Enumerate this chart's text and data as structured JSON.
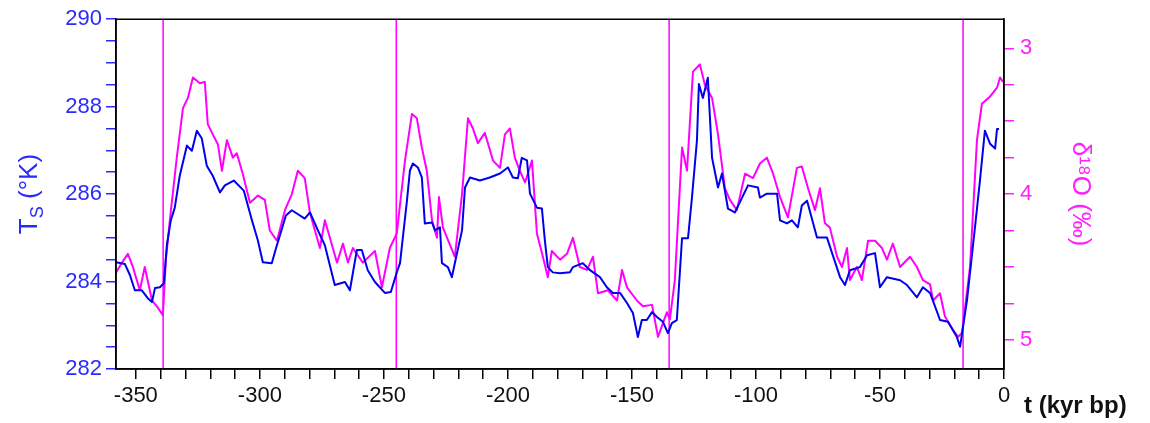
{
  "chart_data": {
    "type": "line",
    "xlabel": "t (kyr bp)",
    "ylabel": "T$_{S}$ (°K)",
    "y2label": "δ¹⁸O (‰)",
    "xlim": [
      -358,
      0
    ],
    "xticks": [
      -350,
      {
        "value": -340,
        "label": null
      },
      {
        "value": -330,
        "label": null
      },
      {
        "value": -320,
        "label": null
      },
      {
        "value": -310,
        "label": null
      },
      -300,
      {
        "value": -290,
        "label": null
      },
      {
        "value": -280,
        "label": null
      },
      {
        "value": -270,
        "label": null
      },
      {
        "value": -260,
        "label": null
      },
      -250,
      {
        "value": -240,
        "label": null
      },
      {
        "value": -230,
        "label": null
      },
      {
        "value": -220,
        "label": null
      },
      {
        "value": -210,
        "label": null
      },
      -200,
      {
        "value": -190,
        "label": null
      },
      {
        "value": -180,
        "label": null
      },
      {
        "value": -170,
        "label": null
      },
      {
        "value": -160,
        "label": null
      },
      -150,
      {
        "value": -140,
        "label": null
      },
      {
        "value": -130,
        "label": null
      },
      {
        "value": -120,
        "label": null
      },
      {
        "value": -110,
        "label": null
      },
      -100,
      {
        "value": -90,
        "label": null
      },
      {
        "value": -80,
        "label": null
      },
      {
        "value": -70,
        "label": null
      },
      {
        "value": -60,
        "label": null
      },
      -50,
      {
        "value": -40,
        "label": null
      },
      {
        "value": -30,
        "label": null
      },
      {
        "value": -20,
        "label": null
      },
      {
        "value": -10,
        "label": null
      },
      0
    ],
    "ylim": [
      282,
      290
    ],
    "yticks": [
      282,
      {
        "value": 282.5,
        "label": null
      },
      {
        "value": 283,
        "label": null
      },
      {
        "value": 283.5,
        "label": null
      },
      284,
      {
        "value": 284.5,
        "label": null
      },
      {
        "value": 285,
        "label": null
      },
      {
        "value": 285.5,
        "label": null
      },
      286,
      {
        "value": 286.5,
        "label": null
      },
      {
        "value": 287,
        "label": null
      },
      {
        "value": 287.5,
        "label": null
      },
      288,
      {
        "value": 288.5,
        "label": null
      },
      {
        "value": 289,
        "label": null
      },
      {
        "value": 289.5,
        "label": null
      },
      290
    ],
    "y2lim": [
      5.2,
      2.8
    ],
    "y2ticks": [
      3,
      {
        "value": 3.25,
        "label": null
      },
      {
        "value": 3.5,
        "label": null
      },
      {
        "value": 3.75,
        "label": null
      },
      4,
      {
        "value": 4.25,
        "label": null
      },
      {
        "value": 4.5,
        "label": null
      },
      {
        "value": 4.75,
        "label": null
      },
      5
    ],
    "grid": false,
    "legend": false,
    "marker": "none",
    "line_style": "solid",
    "ref_lines": [
      {
        "axis": "x",
        "value": -339,
        "color": "#ff00ff"
      },
      {
        "axis": "x",
        "value": -245,
        "color": "#ff00ff"
      },
      {
        "axis": "x",
        "value": -135,
        "color": "#ff00ff"
      },
      {
        "axis": "x",
        "value": -16.5,
        "color": "#ff00ff"
      }
    ],
    "series": [
      {
        "color": "#0000ee",
        "x": [
          -358,
          -354.4,
          -352.4,
          -350.4,
          -347.6,
          -345.2,
          -343.5,
          -342.3,
          -340.3,
          -338.7,
          -337.5,
          -335.9,
          -334.3,
          -332.3,
          -329.4,
          -327.4,
          -325.4,
          -323.4,
          -321.4,
          -319,
          -316.1,
          -314.1,
          -310.5,
          -306.5,
          -303.2,
          -300.8,
          -298.8,
          -295.2,
          -293.5,
          -291.9,
          -289.5,
          -287.1,
          -281.9,
          -279.8,
          -276.6,
          -273.8,
          -269.8,
          -265.7,
          -263.7,
          -260.9,
          -258.9,
          -256.5,
          -253.6,
          -249.6,
          -247.2,
          -244.8,
          -243.5,
          -240.7,
          -239.5,
          -238.3,
          -236.3,
          -234.7,
          -233.5,
          -230.6,
          -229.4,
          -227.4,
          -226.6,
          -224.2,
          -222.6,
          -221.4,
          -218.5,
          -217.3,
          -215.3,
          -211.3,
          -207.3,
          -203.2,
          -200,
          -198,
          -196,
          -194.4,
          -192.3,
          -191.1,
          -188.3,
          -186.3,
          -185.1,
          -183.9,
          -181.9,
          -179,
          -175,
          -173.8,
          -169.8,
          -166.9,
          -162.9,
          -160.1,
          -157.7,
          -154.8,
          -152,
          -149.6,
          -147.6,
          -146,
          -144,
          -141.9,
          -139.9,
          -137.5,
          -135.5,
          -133.9,
          -131.9,
          -129.8,
          -127.4,
          -125.8,
          -123.8,
          -123,
          -121.4,
          -119.4,
          -117.7,
          -115.3,
          -113.7,
          -111.3,
          -108.5,
          -105.6,
          -103.2,
          -99.2,
          -98.4,
          -95.6,
          -91.5,
          -90.3,
          -87.5,
          -85.5,
          -83.1,
          -81.5,
          -79.4,
          -75.4,
          -71.4,
          -66.1,
          -64.1,
          -62.1,
          -58.1,
          -55.2,
          -52,
          -50,
          -47.2,
          -41.9,
          -39.1,
          -35.1,
          -32.7,
          -29.8,
          -25.8,
          -22.6,
          -19,
          -17.7,
          -14.9,
          -11.7,
          -9.7,
          -7.7,
          -5.6,
          -3.6,
          -2.8,
          -2
        ],
        "values": [
          284.44,
          284.4,
          284.15,
          283.8,
          283.8,
          283.62,
          283.53,
          283.85,
          283.87,
          283.96,
          284.83,
          285.4,
          285.69,
          286.42,
          287.11,
          286.99,
          287.45,
          287.27,
          286.65,
          286.42,
          286.04,
          286.2,
          286.31,
          286.08,
          285.4,
          284.94,
          284.44,
          284.42,
          284.76,
          285.06,
          285.51,
          285.63,
          285.44,
          285.58,
          285.17,
          284.83,
          283.92,
          283.99,
          283.8,
          284.72,
          284.72,
          284.26,
          283.99,
          283.74,
          283.76,
          284.21,
          284.42,
          285.85,
          286.54,
          286.7,
          286.61,
          286.38,
          285.33,
          285.35,
          285.17,
          285.24,
          284.42,
          284.33,
          284.1,
          284.42,
          285.17,
          286.15,
          286.38,
          286.31,
          286.38,
          286.47,
          286.61,
          286.38,
          286.36,
          286.83,
          286.77,
          286.01,
          285.69,
          285.67,
          284.94,
          284.33,
          284.21,
          284.19,
          284.21,
          284.33,
          284.42,
          284.26,
          284.1,
          283.87,
          283.74,
          283.74,
          283.51,
          283.28,
          282.73,
          283.12,
          283.12,
          283.3,
          283.19,
          283.08,
          282.82,
          283.05,
          283.12,
          284.99,
          284.99,
          285.92,
          287.22,
          288.52,
          288.2,
          288.66,
          286.83,
          286.15,
          286.47,
          285.67,
          285.58,
          285.92,
          286.2,
          286.15,
          285.92,
          286.01,
          286.01,
          285.4,
          285.33,
          285.4,
          285.24,
          285.74,
          285.85,
          285.01,
          285.01,
          284.1,
          283.92,
          284.26,
          284.33,
          284.6,
          284.65,
          283.87,
          284.1,
          284.03,
          283.92,
          283.64,
          283.87,
          283.74,
          283.12,
          283.08,
          282.73,
          282.51,
          283.58,
          285.24,
          286.31,
          287.45,
          287.15,
          287.04,
          287.49,
          287.49
        ]
      },
      {
        "color": "#ff00ff",
        "axis": "y2",
        "x": [
          -358,
          -355.6,
          -353.2,
          -351.2,
          -348.4,
          -346.4,
          -343.5,
          -341.5,
          -339.1,
          -337.9,
          -336.3,
          -333.5,
          -331,
          -329,
          -327,
          -324.2,
          -322.2,
          -321,
          -319,
          -316.9,
          -315.3,
          -313.3,
          -310.9,
          -309.3,
          -306.9,
          -304,
          -300.8,
          -298,
          -296,
          -293.1,
          -289.9,
          -287.1,
          -284.7,
          -281.9,
          -279.8,
          -275.8,
          -273.8,
          -268.9,
          -266.5,
          -264.5,
          -262.5,
          -258.5,
          -253.6,
          -250.8,
          -247.6,
          -244.8,
          -241.5,
          -238.7,
          -236.7,
          -234.7,
          -232.7,
          -230.6,
          -228.6,
          -227.8,
          -226.2,
          -221.4,
          -218.5,
          -216.1,
          -214.1,
          -212.1,
          -209.3,
          -206,
          -203.2,
          -201.2,
          -199.2,
          -197.2,
          -195.2,
          -193.1,
          -190.3,
          -188.3,
          -185.9,
          -183.9,
          -182.3,
          -179,
          -176.2,
          -173.8,
          -171,
          -168.1,
          -165.7,
          -163.7,
          -159.7,
          -156,
          -154,
          -152,
          -148,
          -145.6,
          -141.9,
          -139.5,
          -135.9,
          -134.7,
          -132.7,
          -129.8,
          -127.8,
          -125.4,
          -122.6,
          -120.6,
          -117.7,
          -115.3,
          -112.5,
          -110.5,
          -107.7,
          -104.4,
          -101.2,
          -98.4,
          -95.6,
          -93.1,
          -90.3,
          -87.1,
          -83.5,
          -81.5,
          -79,
          -76.2,
          -74.2,
          -72.2,
          -70.2,
          -67.3,
          -65.3,
          -63.3,
          -62.1,
          -59.3,
          -57.3,
          -54.8,
          -52,
          -49.2,
          -47.2,
          -44.8,
          -41.9,
          -37.9,
          -35.1,
          -32.7,
          -29.8,
          -28.6,
          -25.8,
          -23.8,
          -20.6,
          -18.5,
          -16.9,
          -13.7,
          -10.9,
          -8.9,
          -5.6,
          -2.8,
          -1.6,
          -0.4
        ],
        "values": [
          4.54,
          4.47,
          4.41,
          4.5,
          4.66,
          4.5,
          4.73,
          4.77,
          4.83,
          4.45,
          4.18,
          3.75,
          3.41,
          3.34,
          3.2,
          3.24,
          3.23,
          3.52,
          3.59,
          3.66,
          3.84,
          3.63,
          3.75,
          3.72,
          3.86,
          4.06,
          4.01,
          4.04,
          4.25,
          4.32,
          4.11,
          4,
          3.84,
          3.89,
          4.13,
          4.37,
          4.18,
          4.47,
          4.34,
          4.47,
          4.37,
          4.47,
          4.39,
          4.64,
          4.37,
          4.27,
          3.77,
          3.45,
          3.48,
          3.68,
          3.84,
          4.18,
          4.3,
          4.02,
          4.23,
          4.43,
          4,
          3.48,
          3.55,
          3.65,
          3.58,
          3.77,
          3.82,
          3.59,
          3.55,
          3.75,
          3.84,
          3.92,
          3.77,
          4.27,
          4.43,
          4.57,
          4.39,
          4.45,
          4.41,
          4.3,
          4.5,
          4.52,
          4.43,
          4.68,
          4.66,
          4.73,
          4.52,
          4.64,
          4.73,
          4.77,
          4.76,
          4.98,
          4.81,
          4.86,
          4.59,
          3.68,
          3.84,
          3.16,
          3.11,
          3.25,
          3.34,
          3.59,
          3.96,
          4.04,
          4.11,
          3.86,
          3.89,
          3.79,
          3.75,
          3.86,
          4.02,
          4.16,
          3.82,
          3.81,
          3.96,
          4.11,
          3.96,
          4.2,
          4.23,
          4.43,
          4.5,
          4.37,
          4.59,
          4.5,
          4.59,
          4.32,
          4.32,
          4.37,
          4.45,
          4.34,
          4.5,
          4.43,
          4.5,
          4.59,
          4.62,
          4.73,
          4.68,
          4.84,
          4.93,
          4.98,
          4.95,
          4.5,
          3.63,
          3.38,
          3.33,
          3.27,
          3.2,
          3.23
        ]
      }
    ]
  }
}
